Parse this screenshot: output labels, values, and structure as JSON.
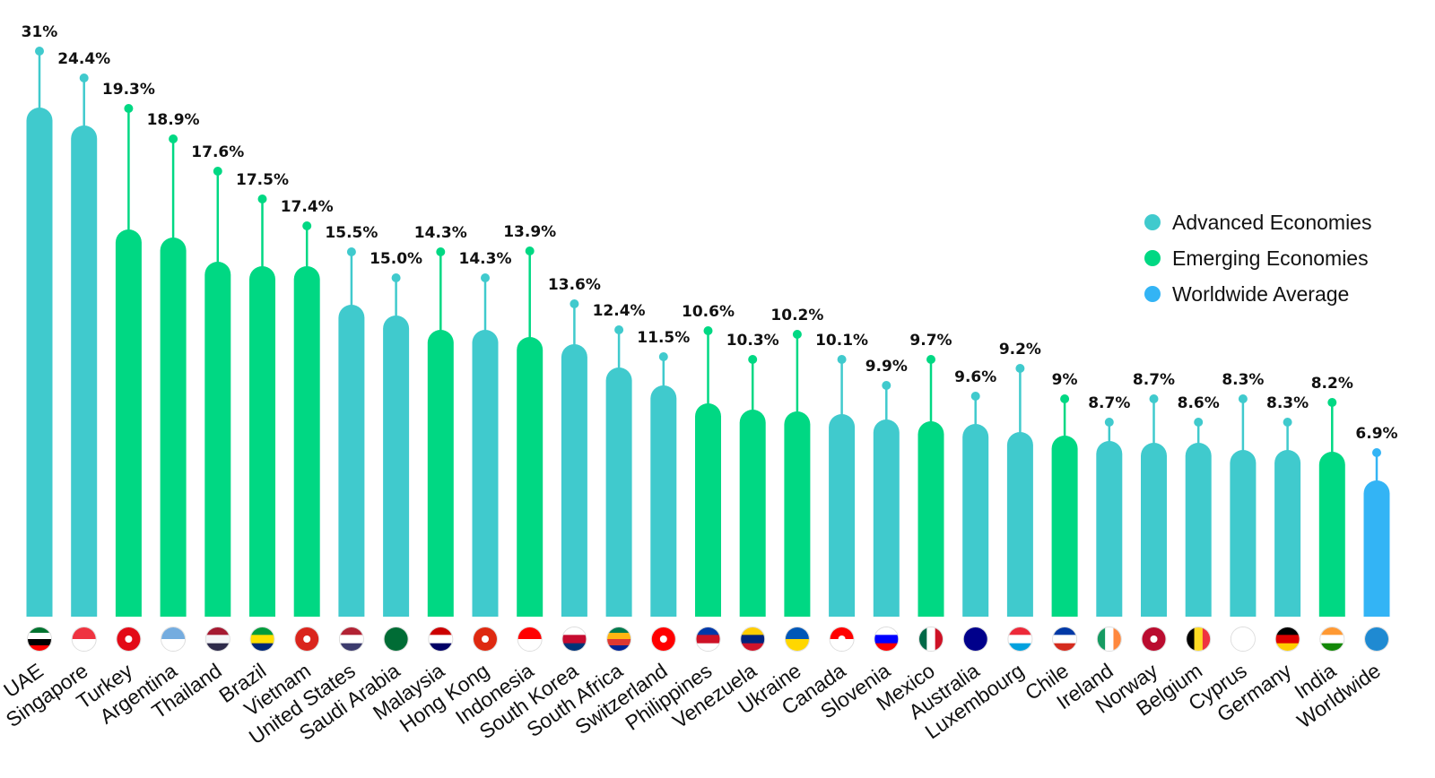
{
  "colors": {
    "advanced": "#40cacd",
    "emerging": "#00d883",
    "worldwide": "#33b4f5"
  },
  "legend": [
    {
      "label": "Advanced Economies",
      "group": "advanced"
    },
    {
      "label": "Emerging Economies",
      "group": "emerging"
    },
    {
      "label": "Worldwide Average",
      "group": "worldwide"
    }
  ],
  "chart_data": {
    "type": "bar",
    "title": "",
    "xlabel": "",
    "ylabel": "",
    "ylim": [
      0,
      31
    ],
    "categories": [
      "UAE",
      "Singapore",
      "Turkey",
      "Argentina",
      "Thailand",
      "Brazil",
      "Vietnam",
      "United States",
      "Saudi Arabia",
      "Malaysia",
      "Hong Kong",
      "Indonesia",
      "South Korea",
      "South Africa",
      "Switzerland",
      "Philippines",
      "Venezuela",
      "Ukraine",
      "Canada",
      "Slovenia",
      "Mexico",
      "Australia",
      "Luxembourg",
      "Chile",
      "Ireland",
      "Norway",
      "Belgium",
      "Cyprus",
      "Germany",
      "India",
      "Worldwide"
    ],
    "values": [
      31,
      24.4,
      19.3,
      18.9,
      17.6,
      17.5,
      17.4,
      15.5,
      15.0,
      14.3,
      14.3,
      13.9,
      13.6,
      12.4,
      11.5,
      10.6,
      10.3,
      10.2,
      10.1,
      9.9,
      9.7,
      9.6,
      9.2,
      9,
      8.7,
      8.7,
      8.6,
      8.3,
      8.3,
      8.2,
      6.9
    ],
    "labels": [
      "31%",
      "24.4%",
      "19.3%",
      "18.9%",
      "17.6%",
      "17.5%",
      "17.4%",
      "15.5%",
      "15.0%",
      "14.3%",
      "14.3%",
      "13.9%",
      "13.6%",
      "12.4%",
      "11.5%",
      "10.6%",
      "10.3%",
      "10.2%",
      "10.1%",
      "9.9%",
      "9.7%",
      "9.6%",
      "9.2%",
      "9%",
      "8.7%",
      "8.7%",
      "8.6%",
      "8.3%",
      "8.3%",
      "8.2%",
      "6.9%"
    ],
    "groups": [
      "advanced",
      "advanced",
      "emerging",
      "emerging",
      "emerging",
      "emerging",
      "emerging",
      "advanced",
      "advanced",
      "emerging",
      "advanced",
      "emerging",
      "advanced",
      "advanced",
      "advanced",
      "emerging",
      "emerging",
      "emerging",
      "advanced",
      "advanced",
      "emerging",
      "advanced",
      "advanced",
      "emerging",
      "advanced",
      "advanced",
      "advanced",
      "advanced",
      "advanced",
      "emerging",
      "worldwide"
    ],
    "flags": [
      "uae-flag-icon",
      "singapore-flag-icon",
      "turkey-flag-icon",
      "argentina-flag-icon",
      "thailand-flag-icon",
      "brazil-flag-icon",
      "vietnam-flag-icon",
      "united-states-flag-icon",
      "saudi-arabia-flag-icon",
      "malaysia-flag-icon",
      "hong-kong-flag-icon",
      "indonesia-flag-icon",
      "south-korea-flag-icon",
      "south-africa-flag-icon",
      "switzerland-flag-icon",
      "philippines-flag-icon",
      "venezuela-flag-icon",
      "ukraine-flag-icon",
      "canada-flag-icon",
      "slovenia-flag-icon",
      "mexico-flag-icon",
      "australia-flag-icon",
      "luxembourg-flag-icon",
      "chile-flag-icon",
      "ireland-flag-icon",
      "norway-flag-icon",
      "belgium-flag-icon",
      "cyprus-flag-icon",
      "germany-flag-icon",
      "india-flag-icon",
      "globe-icon"
    ]
  }
}
